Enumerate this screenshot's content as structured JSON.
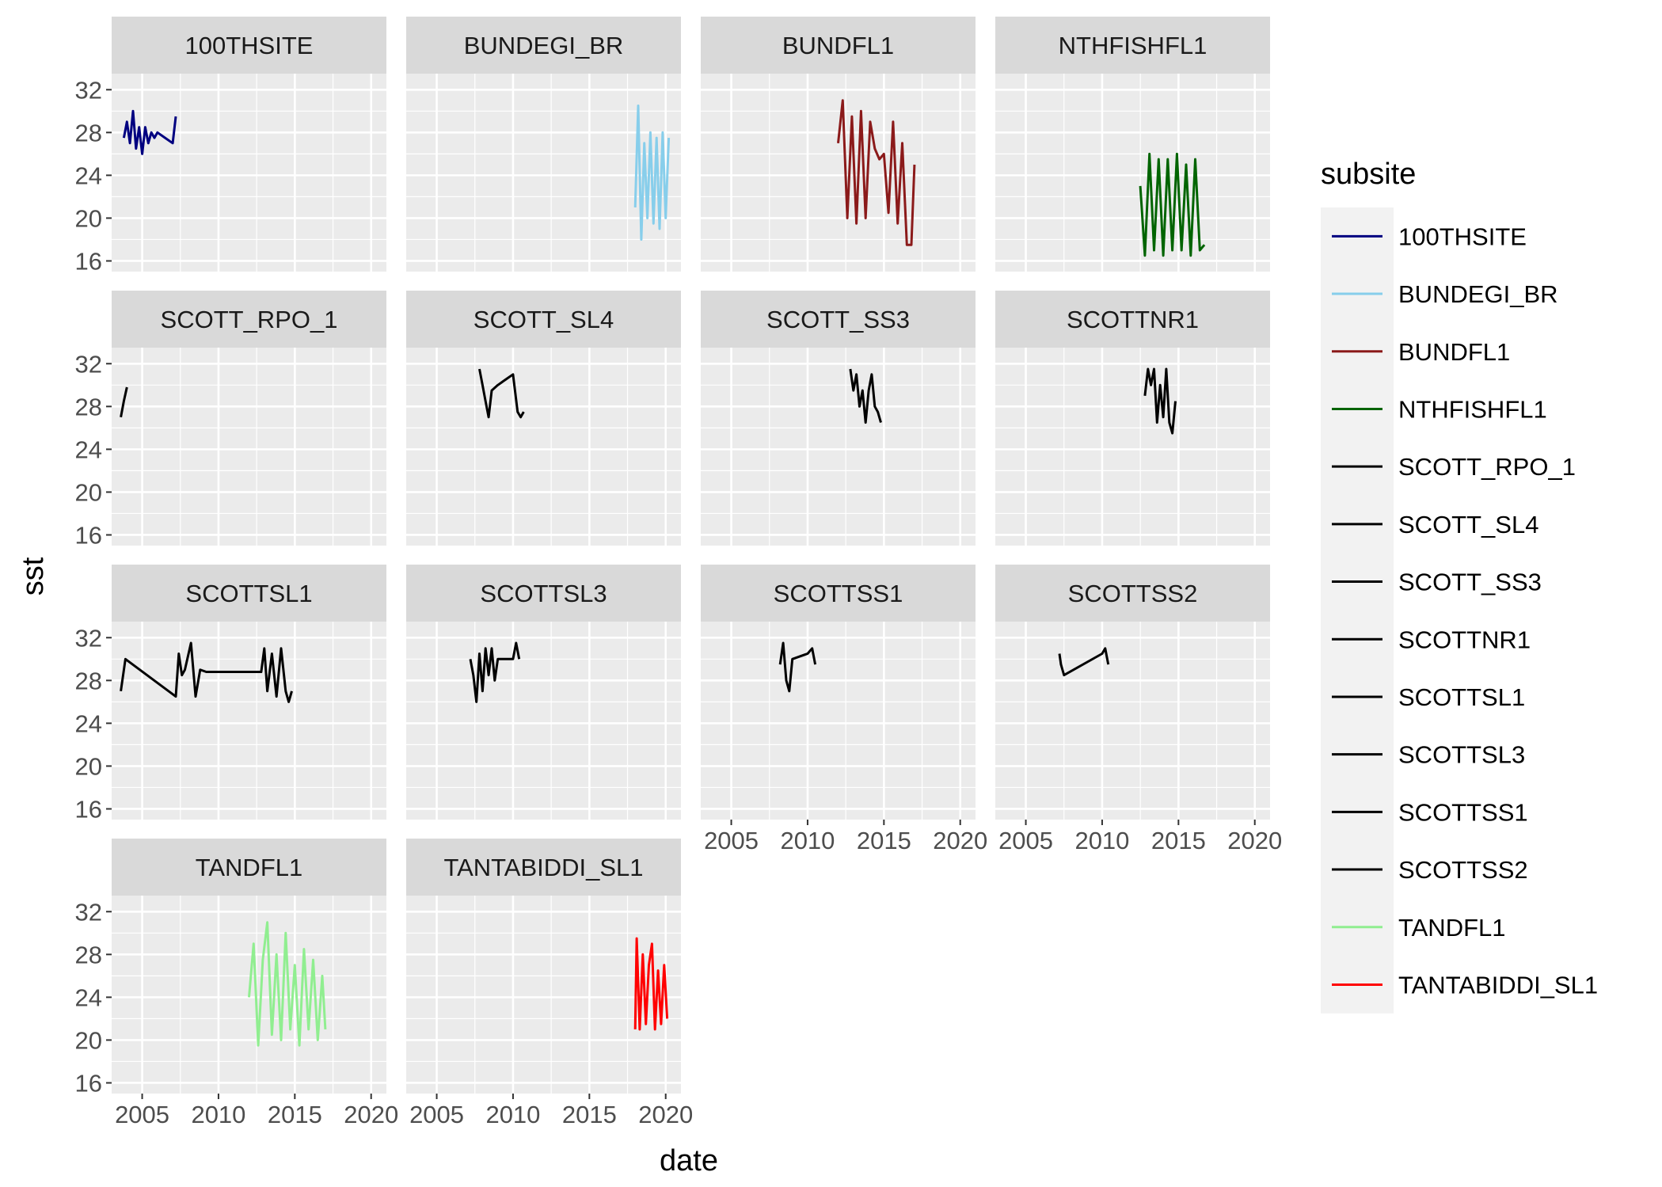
{
  "chart_data": {
    "type": "line",
    "xlabel": "date",
    "ylabel": "sst",
    "legend_title": "subsite",
    "legend_position": "right",
    "grid": true,
    "xlim": [
      2003.0,
      2021.0
    ],
    "ylim": [
      15.0,
      33.5
    ],
    "x_ticks": [
      2005,
      2010,
      2015,
      2020
    ],
    "y_ticks": [
      16,
      20,
      24,
      28,
      32
    ],
    "x_tick_labels": [
      "2005",
      "2010",
      "2015",
      "2020"
    ],
    "y_tick_labels": [
      "16",
      "20",
      "24",
      "28",
      "32"
    ],
    "panels": [
      {
        "name": "100THSITE",
        "color": "#000080",
        "x": [
          2003.8,
          2004.0,
          2004.2,
          2004.4,
          2004.6,
          2004.8,
          2005.0,
          2005.2,
          2005.4,
          2005.6,
          2005.8,
          2006.0,
          2006.5,
          2007.0,
          2007.2
        ],
        "y": [
          27.5,
          29.0,
          27.0,
          30.0,
          26.5,
          28.5,
          26.0,
          28.5,
          27.0,
          28.0,
          27.5,
          28.0,
          27.5,
          27.0,
          29.5
        ]
      },
      {
        "name": "BUNDEGI_BR",
        "color": "#87CEEB",
        "x": [
          2018.0,
          2018.2,
          2018.4,
          2018.6,
          2018.8,
          2019.0,
          2019.2,
          2019.4,
          2019.6,
          2019.8,
          2020.0,
          2020.2
        ],
        "y": [
          21.0,
          30.5,
          18.0,
          27.0,
          20.0,
          28.0,
          19.5,
          27.5,
          19.0,
          28.0,
          20.0,
          27.5
        ]
      },
      {
        "name": "BUNDFL1",
        "color": "#8B1A1A",
        "x": [
          2012.0,
          2012.3,
          2012.6,
          2012.9,
          2013.2,
          2013.5,
          2013.8,
          2014.1,
          2014.4,
          2014.7,
          2015.0,
          2015.3,
          2015.6,
          2015.9,
          2016.2,
          2016.5,
          2016.8,
          2017.0
        ],
        "y": [
          27.0,
          31.0,
          20.0,
          29.5,
          19.5,
          30.0,
          20.0,
          29.0,
          26.5,
          25.5,
          26.0,
          20.5,
          29.0,
          19.5,
          27.0,
          17.5,
          17.5,
          25.0
        ]
      },
      {
        "name": "NTHFISHFL1",
        "color": "#006400",
        "x": [
          2012.5,
          2012.8,
          2013.1,
          2013.4,
          2013.7,
          2014.0,
          2014.3,
          2014.6,
          2014.9,
          2015.2,
          2015.5,
          2015.8,
          2016.1,
          2016.4,
          2016.7
        ],
        "y": [
          23.0,
          16.5,
          26.0,
          17.0,
          25.5,
          16.5,
          25.5,
          17.0,
          26.0,
          17.0,
          25.0,
          16.5,
          25.5,
          17.0,
          17.5
        ]
      },
      {
        "name": "SCOTT_RPO_1",
        "color": "#000000",
        "x": [
          2003.6,
          2003.8,
          2004.0
        ],
        "y": [
          27.0,
          28.5,
          29.8
        ]
      },
      {
        "name": "SCOTT_SL4",
        "color": "#000000",
        "x": [
          2007.8,
          2008.0,
          2008.2,
          2008.4,
          2008.6,
          2009.0,
          2009.5,
          2010.0,
          2010.3,
          2010.5,
          2010.7
        ],
        "y": [
          31.5,
          30.0,
          28.5,
          27.0,
          29.5,
          30.0,
          30.5,
          31.0,
          27.5,
          27.0,
          27.5
        ]
      },
      {
        "name": "SCOTT_SS3",
        "color": "#000000",
        "x": [
          2012.8,
          2013.0,
          2013.2,
          2013.4,
          2013.6,
          2013.8,
          2014.0,
          2014.2,
          2014.4,
          2014.6,
          2014.8
        ],
        "y": [
          31.5,
          29.5,
          31.0,
          28.0,
          29.5,
          26.5,
          29.5,
          31.0,
          28.0,
          27.5,
          26.5
        ]
      },
      {
        "name": "SCOTTNR1",
        "color": "#000000",
        "x": [
          2012.8,
          2013.0,
          2013.2,
          2013.4,
          2013.6,
          2013.8,
          2014.0,
          2014.2,
          2014.4,
          2014.6,
          2014.8
        ],
        "y": [
          29.0,
          31.5,
          30.0,
          31.5,
          26.5,
          30.0,
          27.0,
          31.5,
          26.5,
          25.5,
          28.5
        ]
      },
      {
        "name": "SCOTTSL1",
        "color": "#000000",
        "x": [
          2003.6,
          2003.9,
          2007.2,
          2007.4,
          2007.6,
          2007.8,
          2008.2,
          2008.5,
          2008.8,
          2009.2,
          2012.8,
          2013.0,
          2013.2,
          2013.5,
          2013.8,
          2014.1,
          2014.4,
          2014.6,
          2014.8
        ],
        "y": [
          27.0,
          30.0,
          26.5,
          30.5,
          28.5,
          29.0,
          31.5,
          26.5,
          29.0,
          28.8,
          28.8,
          31.0,
          27.0,
          30.5,
          26.5,
          31.0,
          27.0,
          26.0,
          27.0
        ]
      },
      {
        "name": "SCOTTSL3",
        "color": "#000000",
        "x": [
          2007.2,
          2007.4,
          2007.6,
          2007.8,
          2008.0,
          2008.2,
          2008.4,
          2008.6,
          2008.8,
          2009.0,
          2009.5,
          2010.0,
          2010.2,
          2010.4
        ],
        "y": [
          30.0,
          28.5,
          26.0,
          30.5,
          27.0,
          31.0,
          28.5,
          31.0,
          28.0,
          30.0,
          30.0,
          30.0,
          31.5,
          30.0
        ]
      },
      {
        "name": "SCOTTSS1",
        "color": "#000000",
        "x": [
          2008.2,
          2008.4,
          2008.6,
          2008.8,
          2009.0,
          2010.0,
          2010.3,
          2010.5
        ],
        "y": [
          29.5,
          31.5,
          28.0,
          27.0,
          30.0,
          30.5,
          31.0,
          29.5
        ]
      },
      {
        "name": "SCOTTSS2",
        "color": "#000000",
        "x": [
          2007.2,
          2007.3,
          2007.5,
          2010.0,
          2010.2,
          2010.4
        ],
        "y": [
          30.5,
          29.5,
          28.5,
          30.5,
          31.0,
          29.5
        ]
      },
      {
        "name": "TANDFL1",
        "color": "#90EE90",
        "x": [
          2012.0,
          2012.3,
          2012.6,
          2012.9,
          2013.2,
          2013.5,
          2013.8,
          2014.1,
          2014.4,
          2014.7,
          2015.0,
          2015.3,
          2015.6,
          2015.9,
          2016.2,
          2016.5,
          2016.8,
          2017.0
        ],
        "y": [
          24.0,
          29.0,
          19.5,
          27.5,
          31.0,
          20.5,
          28.0,
          20.0,
          30.0,
          21.0,
          27.0,
          19.5,
          28.5,
          21.0,
          27.5,
          20.0,
          26.0,
          21.0
        ]
      },
      {
        "name": "TANTABIDDI_SL1",
        "color": "#FF0000",
        "x": [
          2018.0,
          2018.1,
          2018.3,
          2018.5,
          2018.7,
          2018.9,
          2019.1,
          2019.3,
          2019.5,
          2019.7,
          2019.9,
          2020.1
        ],
        "y": [
          21.0,
          29.5,
          21.0,
          28.0,
          21.5,
          27.0,
          29.0,
          21.0,
          26.5,
          21.5,
          27.0,
          22.0
        ]
      }
    ]
  }
}
